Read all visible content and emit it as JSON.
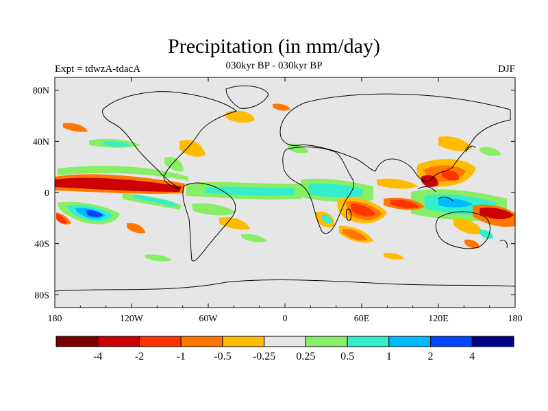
{
  "title": "Precipitation (in mm/day)",
  "subtitle": "030kyr BP - 030kyr BP",
  "left_label": "Expt = tdwzA-tdacA",
  "right_label": "DJF",
  "colors": {
    "land_ocean": "#e6e6e6",
    "coast": "#000000"
  },
  "axes": {
    "lon_ticks": [
      "180",
      "120W",
      "60W",
      "0",
      "60E",
      "120E",
      "180"
    ],
    "lat_ticks": [
      "80N",
      "40N",
      "0",
      "40S",
      "80S"
    ]
  },
  "colorbar": {
    "colors": [
      "#7a0000",
      "#cc0000",
      "#ff3300",
      "#ff7700",
      "#ffbb00",
      "#e6e6e6",
      "#88ee66",
      "#33eecc",
      "#00bbff",
      "#0044ff",
      "#000088"
    ],
    "labels": [
      "-4",
      "-2",
      "-1",
      "-0.5",
      "-0.25",
      "0.25",
      "0.5",
      "1",
      "2",
      "4"
    ]
  }
}
